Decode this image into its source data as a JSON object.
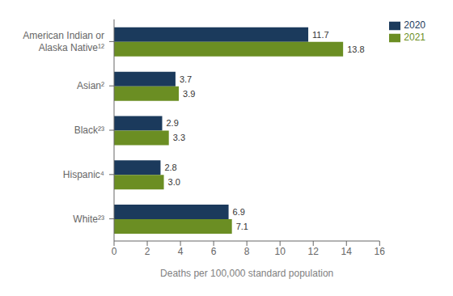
{
  "chart_data": {
    "type": "bar",
    "orientation": "horizontal",
    "categories": [
      "White²³",
      "Hispanic⁴",
      "Black²³",
      "Asian²",
      "American Indian or\nAlaska Native¹²"
    ],
    "series": [
      {
        "name": "2020",
        "color": "#1b3a5c",
        "values": [
          6.9,
          2.8,
          2.9,
          3.7,
          11.7
        ],
        "value_labels": [
          "6.9",
          "2.8",
          "2.9",
          "3.7",
          "11.7"
        ]
      },
      {
        "name": "2021",
        "color": "#6b8e23",
        "values": [
          7.1,
          3.0,
          3.3,
          3.9,
          13.8
        ],
        "value_labels": [
          "7.1",
          "3.0",
          "3.3",
          "3.9",
          "13.8"
        ]
      }
    ],
    "xlabel": "Deaths per 100,000 standard population",
    "xlim": [
      0,
      16
    ],
    "xticks": [
      0,
      2,
      4,
      6,
      8,
      10,
      12,
      14,
      16
    ],
    "data_labels": true,
    "legend": "upper right",
    "grid": false
  }
}
